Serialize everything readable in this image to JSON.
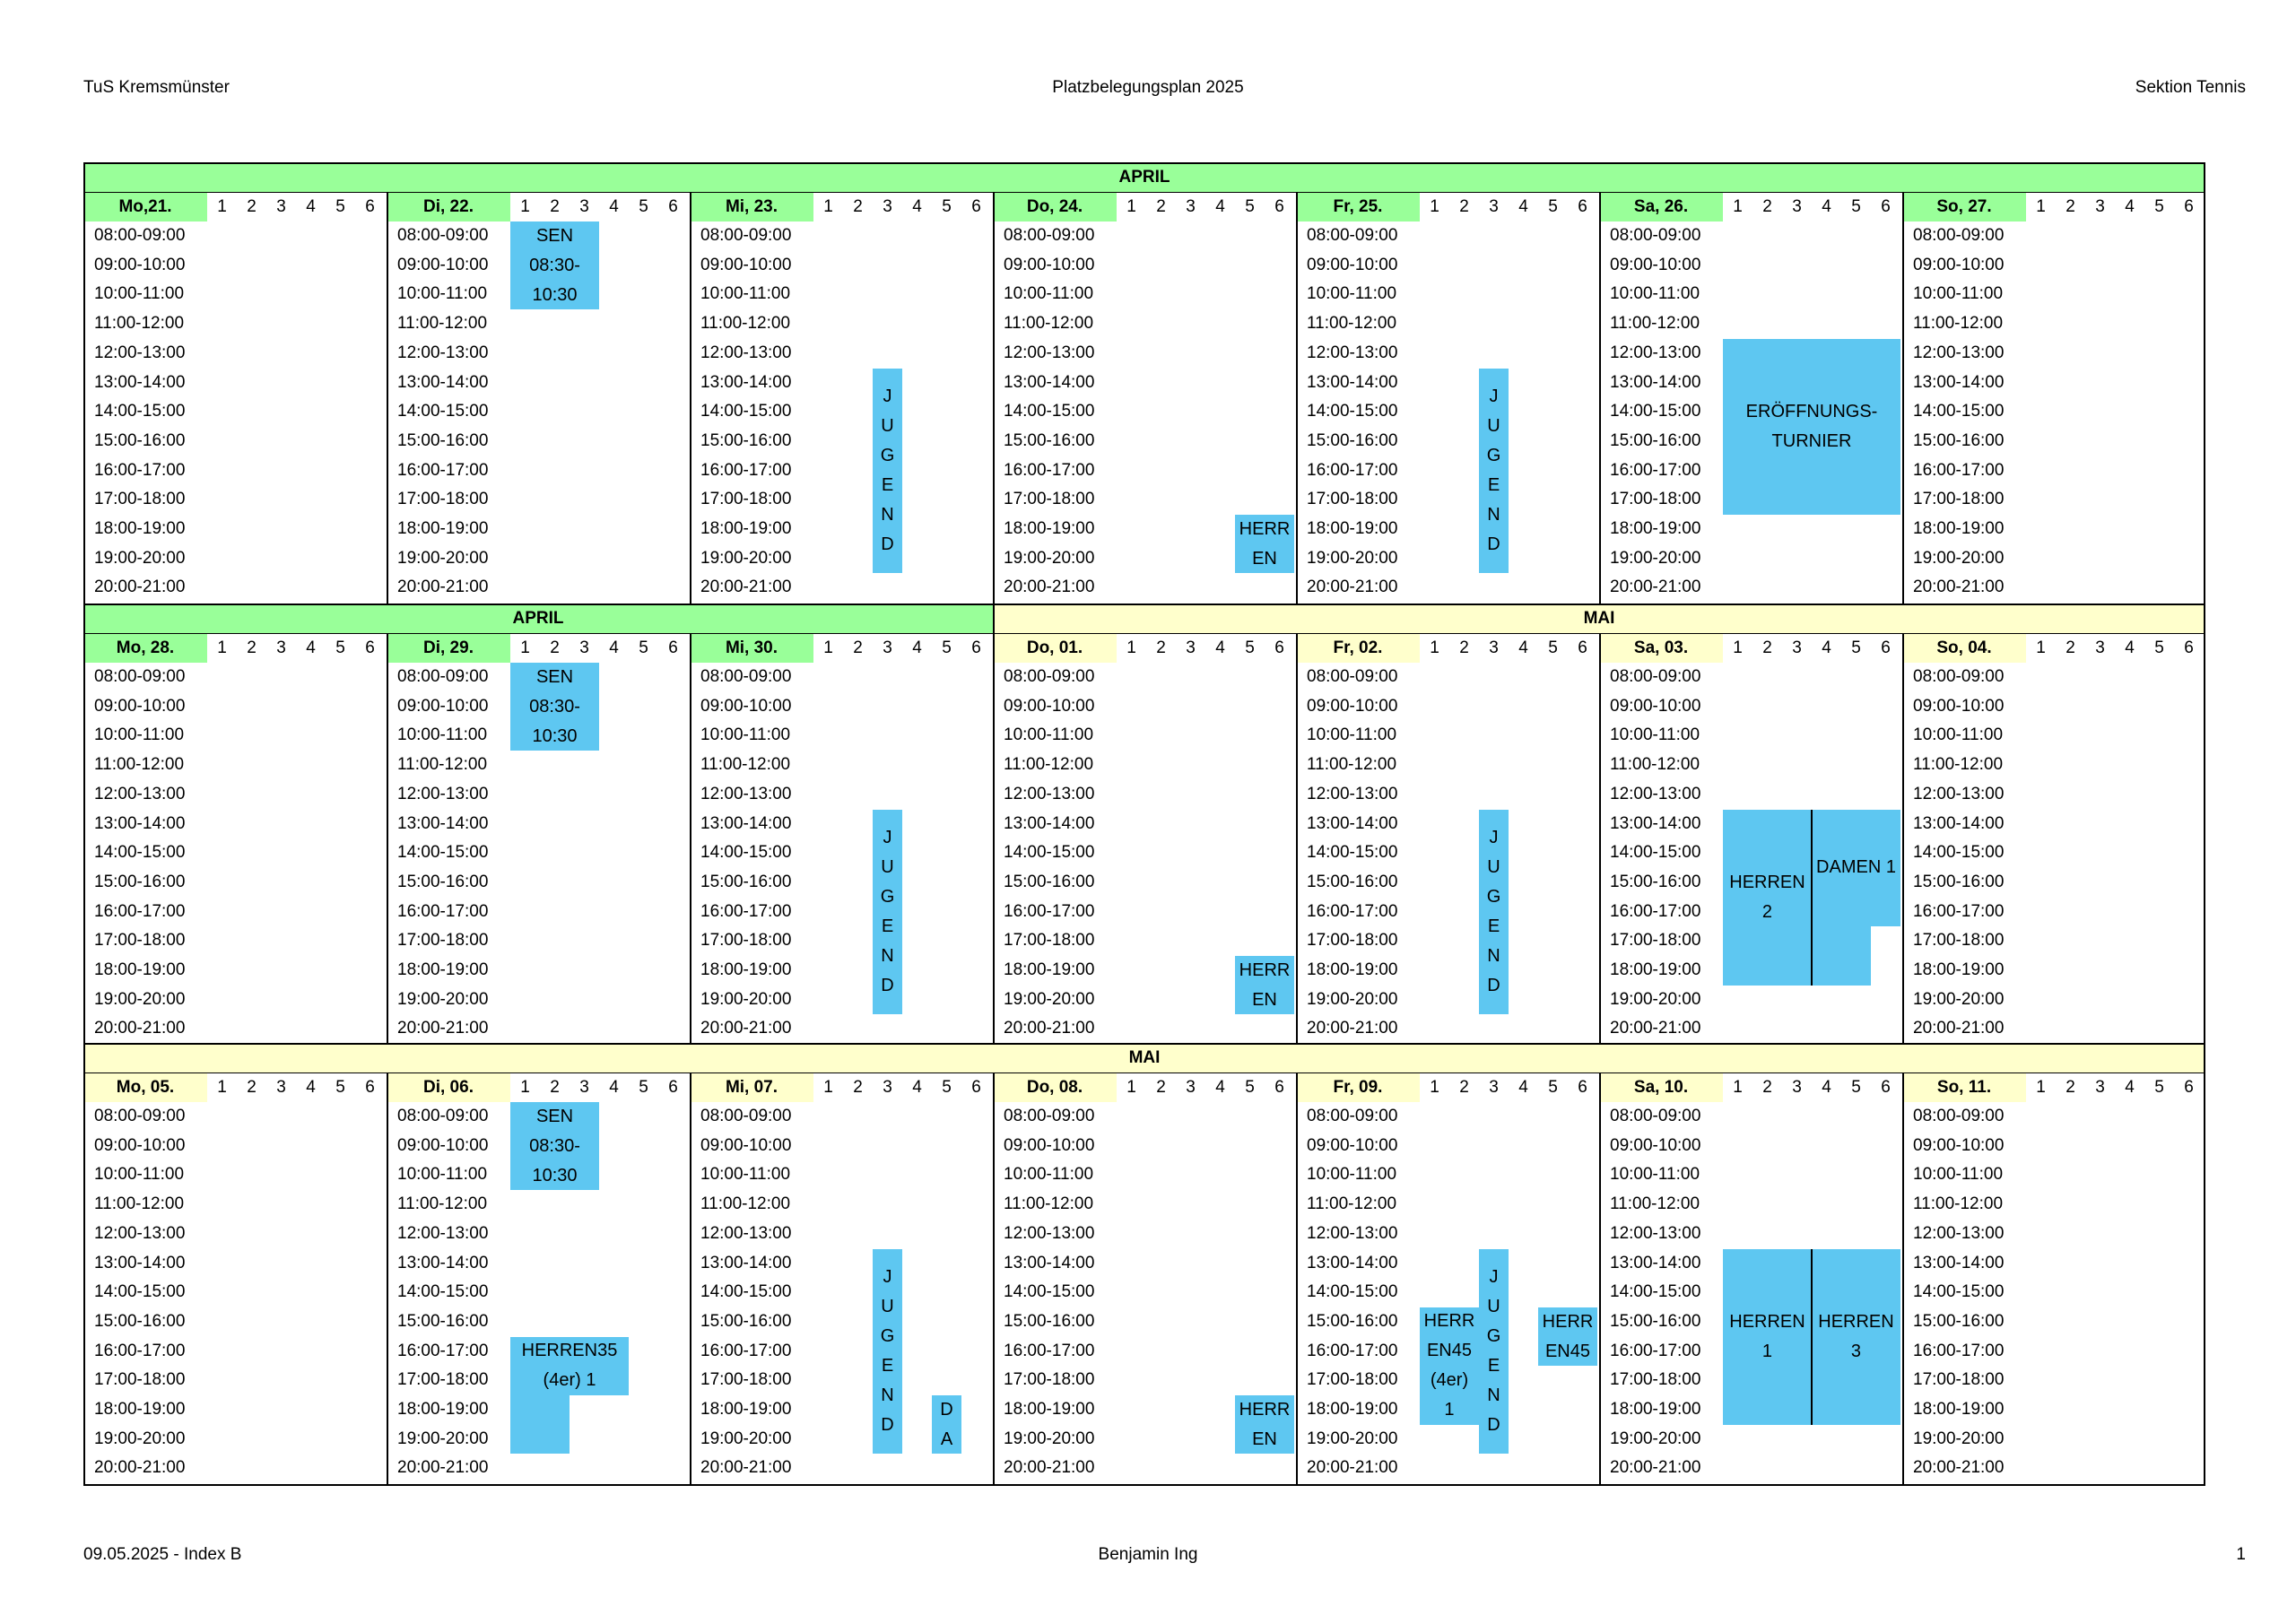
{
  "header": {
    "left": "TuS Kremsmünster",
    "center": "Platzbelegungsplan 2025",
    "right": "Sektion Tennis"
  },
  "footer": {
    "left": "09.05.2025 - Index B",
    "center": "Benjamin Ing",
    "right": "1"
  },
  "court_numbers": [
    "1",
    "2",
    "3",
    "4",
    "5",
    "6"
  ],
  "time_slots": [
    "08:00-09:00",
    "09:00-10:00",
    "10:00-11:00",
    "11:00-12:00",
    "12:00-13:00",
    "13:00-14:00",
    "14:00-15:00",
    "15:00-16:00",
    "16:00-17:00",
    "17:00-18:00",
    "18:00-19:00",
    "19:00-20:00",
    "20:00-21:00"
  ],
  "colors": {
    "april": "#99ff99",
    "mai": "#ffffcc",
    "event": "#5ec7f1"
  },
  "weeks": [
    {
      "month_bands": [
        {
          "label": "APRIL",
          "from_day": 0,
          "to_day": 6,
          "color": "april"
        }
      ],
      "days": [
        {
          "label": "Mo,21.",
          "color": "april",
          "events": []
        },
        {
          "label": "Di, 22.",
          "color": "april",
          "events": [
            {
              "text": "SEN\n08:30-\n10:30",
              "court": 1,
              "span": 3,
              "start": 0,
              "end": 3
            }
          ]
        },
        {
          "label": "Mi, 23.",
          "color": "april",
          "events": [
            {
              "text": "J\nU\nG\nE\nN\nD",
              "court": 3,
              "span": 1,
              "start": 5,
              "end": 12
            }
          ]
        },
        {
          "label": "Do, 24.",
          "color": "april",
          "events": [
            {
              "text": "HERR\nEN",
              "court": 5,
              "span": 2,
              "start": 10,
              "end": 12
            }
          ]
        },
        {
          "label": "Fr, 25.",
          "color": "april",
          "events": [
            {
              "text": "J\nU\nG\nE\nN\nD",
              "court": 3,
              "span": 1,
              "start": 5,
              "end": 12
            }
          ]
        },
        {
          "label": "Sa, 26.",
          "color": "april",
          "events": [
            {
              "text": "ERÖFFNUNGS-\nTURNIER",
              "court": 1,
              "span": 6,
              "start": 4,
              "end": 10
            }
          ]
        },
        {
          "label": "So, 27.",
          "color": "april",
          "events": []
        }
      ]
    },
    {
      "month_bands": [
        {
          "label": "APRIL",
          "from_day": 0,
          "to_day": 2,
          "color": "april"
        },
        {
          "label": "MAI",
          "from_day": 3,
          "to_day": 6,
          "color": "mai"
        }
      ],
      "days": [
        {
          "label": "Mo, 28.",
          "color": "april",
          "events": []
        },
        {
          "label": "Di, 29.",
          "color": "april",
          "events": [
            {
              "text": "SEN\n08:30-\n10:30",
              "court": 1,
              "span": 3,
              "start": 0,
              "end": 3
            }
          ]
        },
        {
          "label": "Mi, 30.",
          "color": "april",
          "events": [
            {
              "text": "J\nU\nG\nE\nN\nD",
              "court": 3,
              "span": 1,
              "start": 5,
              "end": 12
            }
          ]
        },
        {
          "label": "Do, 01.",
          "color": "mai",
          "events": [
            {
              "text": "HERR\nEN",
              "court": 5,
              "span": 2,
              "start": 10,
              "end": 12
            }
          ]
        },
        {
          "label": "Fr, 02.",
          "color": "mai",
          "events": [
            {
              "text": "J\nU\nG\nE\nN\nD",
              "court": 3,
              "span": 1,
              "start": 5,
              "end": 12
            }
          ]
        },
        {
          "label": "Sa, 03.",
          "color": "mai",
          "events": [
            {
              "text": "HERREN\n2",
              "court": 1,
              "span": 3,
              "start": 5,
              "end": 11
            },
            {
              "text": "DAMEN 1",
              "court": 4,
              "span": 3,
              "start": 5,
              "end": 9
            },
            {
              "text": "",
              "court": 4,
              "span": 2,
              "start": 9,
              "end": 11
            }
          ]
        },
        {
          "label": "So, 04.",
          "color": "mai",
          "events": []
        }
      ]
    },
    {
      "month_bands": [
        {
          "label": "MAI",
          "from_day": 0,
          "to_day": 6,
          "color": "mai"
        }
      ],
      "days": [
        {
          "label": "Mo, 05.",
          "color": "mai",
          "events": []
        },
        {
          "label": "Di, 06.",
          "color": "mai",
          "events": [
            {
              "text": "SEN\n08:30-\n10:30",
              "court": 1,
              "span": 3,
              "start": 0,
              "end": 3
            },
            {
              "text": "HERREN35\n(4er) 1",
              "court": 1,
              "span": 4,
              "start": 8,
              "end": 10
            },
            {
              "text": "",
              "court": 1,
              "span": 2,
              "start": 10,
              "end": 12
            }
          ]
        },
        {
          "label": "Mi, 07.",
          "color": "mai",
          "events": [
            {
              "text": "J\nU\nG\nE\nN\nD",
              "court": 3,
              "span": 1,
              "start": 5,
              "end": 12
            },
            {
              "text": "D\nA",
              "court": 5,
              "span": 1,
              "start": 10,
              "end": 12
            }
          ]
        },
        {
          "label": "Do, 08.",
          "color": "mai",
          "events": [
            {
              "text": "HERR\nEN",
              "court": 5,
              "span": 2,
              "start": 10,
              "end": 12
            }
          ]
        },
        {
          "label": "Fr, 09.",
          "color": "mai",
          "events": [
            {
              "text": "HERR\nEN45\n(4er)\n1",
              "court": 1,
              "span": 2,
              "start": 7,
              "end": 11
            },
            {
              "text": "J\nU\nG\nE\nN\nD",
              "court": 3,
              "span": 1,
              "start": 5,
              "end": 12
            },
            {
              "text": "HERR\nEN45",
              "court": 5,
              "span": 2,
              "start": 7,
              "end": 9
            }
          ]
        },
        {
          "label": "Sa, 10.",
          "color": "mai",
          "events": [
            {
              "text": "HERREN\n1",
              "court": 1,
              "span": 3,
              "start": 5,
              "end": 11
            },
            {
              "text": "HERREN\n3",
              "court": 4,
              "span": 3,
              "start": 5,
              "end": 11
            }
          ]
        },
        {
          "label": "So, 11.",
          "color": "mai",
          "events": []
        }
      ]
    }
  ]
}
